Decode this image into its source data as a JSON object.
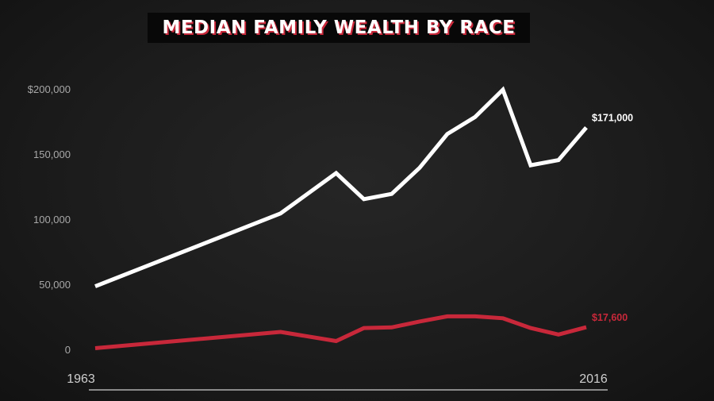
{
  "chart_data": {
    "type": "line",
    "title": "MEDIAN FAMILY WEALTH BY RACE",
    "x": [
      1963,
      1983,
      1989,
      1992,
      1995,
      1998,
      2001,
      2004,
      2007,
      2010,
      2013,
      2016
    ],
    "x_tick_labels": [
      "1963",
      "2016"
    ],
    "y_tick_labels": [
      "0",
      "50,000",
      "100,000",
      "150,000",
      "$200,000"
    ],
    "y_ticks": [
      0,
      50000,
      100000,
      150000,
      200000
    ],
    "ylim": [
      0,
      200000
    ],
    "xlim": [
      1963,
      2016
    ],
    "grid": false,
    "series": [
      {
        "color": "#ffffff",
        "values": [
          49000,
          105000,
          136000,
          116000,
          120000,
          140000,
          166000,
          179000,
          200000,
          142000,
          146000,
          171000
        ],
        "end_label": "$171,000"
      },
      {
        "color": "#c8283a",
        "values": [
          1500,
          14000,
          7000,
          17000,
          17500,
          22000,
          26000,
          26000,
          24500,
          17000,
          12000,
          17600
        ],
        "end_label": "$17,600"
      }
    ]
  }
}
